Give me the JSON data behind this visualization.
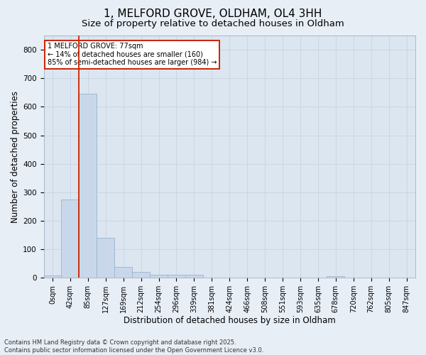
{
  "title": "1, MELFORD GROVE, OLDHAM, OL4 3HH",
  "subtitle": "Size of property relative to detached houses in Oldham",
  "xlabel": "Distribution of detached houses by size in Oldham",
  "ylabel": "Number of detached properties",
  "footer_line1": "Contains HM Land Registry data © Crown copyright and database right 2025.",
  "footer_line2": "Contains public sector information licensed under the Open Government Licence v3.0.",
  "categories": [
    "0sqm",
    "42sqm",
    "85sqm",
    "127sqm",
    "169sqm",
    "212sqm",
    "254sqm",
    "296sqm",
    "339sqm",
    "381sqm",
    "424sqm",
    "466sqm",
    "508sqm",
    "551sqm",
    "593sqm",
    "635sqm",
    "678sqm",
    "720sqm",
    "762sqm",
    "805sqm",
    "847sqm"
  ],
  "values": [
    7,
    275,
    645,
    140,
    37,
    20,
    10,
    10,
    10,
    0,
    0,
    0,
    0,
    0,
    0,
    0,
    5,
    0,
    0,
    0,
    0
  ],
  "bar_color": "#c8d8ea",
  "bar_edgecolor": "#9ab4cc",
  "vline_color": "#cc2200",
  "vline_x_index": 1.5,
  "annotation_text": "1 MELFORD GROVE: 77sqm\n← 14% of detached houses are smaller (160)\n85% of semi-detached houses are larger (984) →",
  "annotation_box_color": "#cc2200",
  "ylim": [
    0,
    850
  ],
  "yticks": [
    0,
    100,
    200,
    300,
    400,
    500,
    600,
    700,
    800
  ],
  "grid_color": "#c8d4e4",
  "bg_color": "#dce6f0",
  "fig_bg_color": "#e8eef6",
  "title_fontsize": 11,
  "subtitle_fontsize": 9.5,
  "axis_label_fontsize": 8.5,
  "tick_fontsize": 7,
  "footer_fontsize": 6,
  "annotation_fontsize": 7
}
